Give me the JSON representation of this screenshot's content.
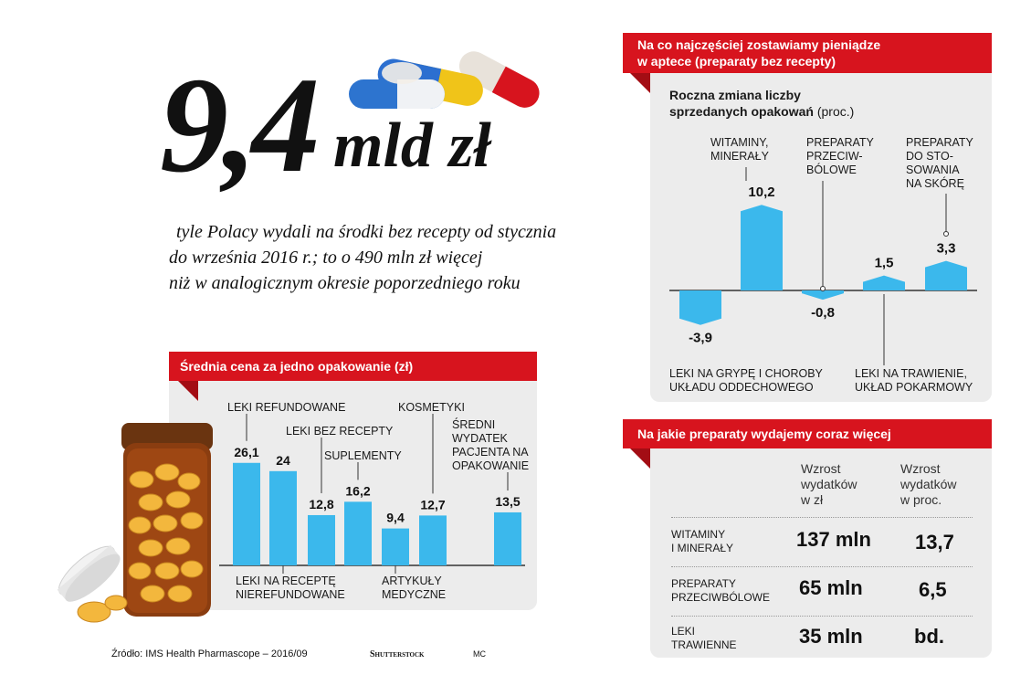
{
  "headline": {
    "value": "9,4",
    "unit": "mld zł",
    "subtitle_lines": [
      "tyle Polacy wydali na środki  bez recepty od stycznia",
      "do września 2016 r.;  to o 490 mln zł więcej",
      "niż w analogicznym  okresie poporzedniego roku"
    ]
  },
  "panel_price": {
    "title": "Średnia cena za jedno opakowanie (zł)"
  },
  "panel_change": {
    "title_line1": "Na co najczęściej zostawiamy pieniądze",
    "title_line2": "w aptece (preparaty bez recepty)",
    "subtitle_bold_1": "Roczna zmiana liczby",
    "subtitle_bold_2": "sprzedanych opakowań",
    "subtitle_unit": "(proc.)"
  },
  "panel_table": {
    "title": "Na jakie preparaty wydajemy coraz więcej",
    "col1_lines": [
      "Wzrost",
      "wydatków",
      "w zł"
    ],
    "col2_lines": [
      "Wzrost",
      "wydatków",
      "w proc."
    ],
    "rows": [
      {
        "label_lines": [
          "WITAMINY",
          "I MINERAŁY"
        ],
        "zl": "137 mln",
        "proc": "13,7"
      },
      {
        "label_lines": [
          "PREPARATY",
          "PRZECIWBÓLOWE"
        ],
        "zl": "65 mln",
        "proc": "6,5"
      },
      {
        "label_lines": [
          "LEKI",
          "TRAWIENNE"
        ],
        "zl": "35 mln",
        "proc": "bd."
      }
    ]
  },
  "footer": {
    "source": "Źródło: IMS Health Pharmascope – 2016/09",
    "credit": "Shutterstock",
    "author": "MC"
  },
  "colors": {
    "red": "#d7141e",
    "bar": "#3bb8ec",
    "panel": "#ececec"
  },
  "chart_data": [
    {
      "type": "bar",
      "title": "Średnia cena za jedno opakowanie (zł)",
      "categories": [
        "LEKI REFUNDOWANE",
        "LEKI NA RECEPTĘ NIEREFUNDOWANE",
        "LEKI BEZ RECEPTY",
        "SUPLEMENTY",
        "ARTYKUŁY MEDYCZNE",
        "KOSMETYKI",
        "ŚREDNI WYDATEK PACJENTA NA OPAKOWANIE"
      ],
      "category_lines": [
        [
          "LEKI REFUNDOWANE"
        ],
        [
          "LEKI NA RECEPTĘ",
          "NIEREFUNDOWANE"
        ],
        [
          "LEKI BEZ RECEPTY"
        ],
        [
          "SUPLEMENTY"
        ],
        [
          "ARTYKUŁY",
          "MEDYCZNE"
        ],
        [
          "KOSMETYKI"
        ],
        [
          "ŚREDNI",
          "WYDATEK",
          "PACJENTA NA",
          "OPAKOWANIE"
        ]
      ],
      "values": [
        26.1,
        24,
        12.8,
        16.2,
        9.4,
        12.7,
        13.5
      ],
      "value_labels": [
        "26,1",
        "24",
        "12,8",
        "16,2",
        "9,4",
        "12,7",
        "13,5"
      ],
      "ylim": [
        0,
        30
      ]
    },
    {
      "type": "bar",
      "title": "Roczna zmiana liczby sprzedanych opakowań (proc.)",
      "categories": [
        "LEKI NA GRYPĘ I CHOROBY UKŁADU ODDECHOWEGO",
        "WITAMINY, MINERAŁY",
        "PREPARATY PRZECIWBÓLOWE",
        "LEKI NA TRAWIENIE, UKŁAD POKARMOWY",
        "PREPARATY DO STOSOWANIA NA SKÓRĘ"
      ],
      "category_lines": [
        [
          "LEKI NA GRYPĘ I CHOROBY",
          "UKŁADU ODDECHOWEGO"
        ],
        [
          "WITAMINY,",
          "MINERAŁY"
        ],
        [
          "PREPARATY",
          "PRZECIW-",
          "BÓLOWE"
        ],
        [
          "LEKI NA TRAWIENIE,",
          "UKŁAD POKARMOWY"
        ],
        [
          "PREPARATY",
          "DO STO-",
          "SOWANIA",
          "NA SKÓRĘ"
        ]
      ],
      "values": [
        -3.9,
        10.2,
        -0.8,
        1.5,
        3.3
      ],
      "value_labels": [
        "-3,9",
        "10,2",
        "-0,8",
        "1,5",
        "3,3"
      ],
      "ylim": [
        -4,
        11
      ]
    }
  ]
}
